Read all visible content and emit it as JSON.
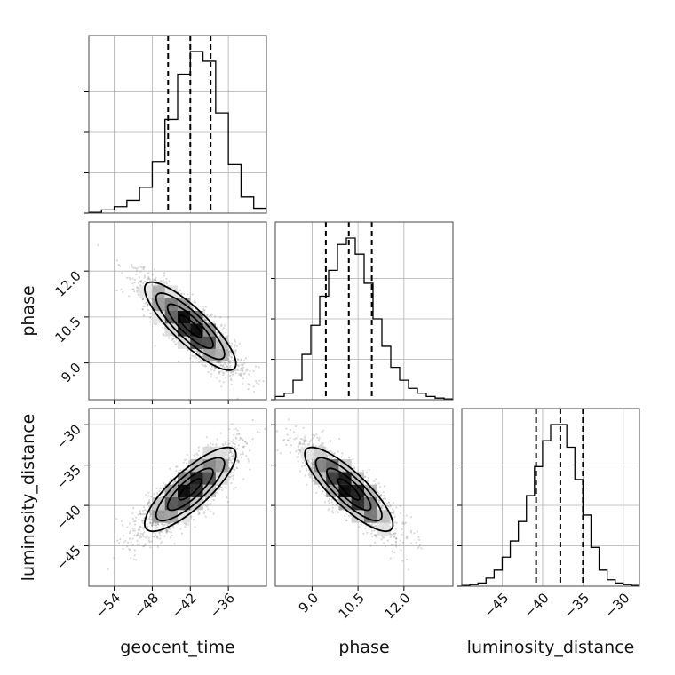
{
  "chart_data": {
    "type": "corner",
    "parameters": [
      "geocent_time",
      "phase",
      "luminosity_distance"
    ],
    "ranges": {
      "geocent_time": [
        -58,
        -30
      ],
      "phase": [
        7.8,
        13.6
      ],
      "luminosity_distance": [
        -50,
        -28
      ]
    },
    "ticks": {
      "geocent_time": [
        -54,
        -48,
        -42,
        -36
      ],
      "phase": [
        9.0,
        10.5,
        12.0
      ],
      "luminosity_distance": [
        -45,
        -40,
        -35,
        -30
      ]
    },
    "tick_labels": {
      "geocent_time": [
        "−54",
        "−48",
        "−42",
        "−36"
      ],
      "phase": [
        "9.0",
        "10.5",
        "12.0"
      ],
      "luminosity_distance": [
        "−45",
        "−40",
        "−35",
        "−30"
      ]
    },
    "histograms": {
      "geocent_time": {
        "bin_edges": [
          -58,
          -56,
          -54,
          -52,
          -50,
          -48,
          -46,
          -44,
          -42,
          -40,
          -38,
          -36,
          -34,
          -32,
          -30
        ],
        "counts": [
          0.005,
          0.02,
          0.04,
          0.08,
          0.16,
          0.32,
          0.58,
          0.86,
          1.0,
          0.94,
          0.62,
          0.3,
          0.1,
          0.03
        ],
        "quantiles": [
          -45.5,
          -42.0,
          -38.8
        ]
      },
      "phase": {
        "bin_edges": [
          7.8,
          8.09,
          8.38,
          8.67,
          8.96,
          9.25,
          9.54,
          9.83,
          10.12,
          10.41,
          10.7,
          10.99,
          11.28,
          11.57,
          11.86,
          12.15,
          12.44,
          12.73,
          13.02,
          13.31,
          13.6
        ],
        "counts": [
          0.02,
          0.04,
          0.12,
          0.28,
          0.46,
          0.64,
          0.8,
          0.96,
          1.0,
          0.9,
          0.72,
          0.5,
          0.33,
          0.2,
          0.12,
          0.07,
          0.04,
          0.02,
          0.01,
          0.005
        ],
        "quantiles": [
          9.45,
          10.2,
          10.95
        ]
      },
      "luminosity_distance": {
        "bin_edges": [
          -50,
          -49,
          -48,
          -47,
          -46,
          -45,
          -44,
          -43,
          -42,
          -41,
          -40,
          -39,
          -38,
          -37,
          -36,
          -35,
          -34,
          -33,
          -32,
          -31,
          -30,
          -29,
          -28
        ],
        "counts": [
          0.005,
          0.01,
          0.02,
          0.05,
          0.1,
          0.18,
          0.28,
          0.4,
          0.56,
          0.74,
          0.9,
          1.0,
          1.0,
          0.86,
          0.66,
          0.44,
          0.24,
          0.1,
          0.04,
          0.02,
          0.01,
          0.005
        ],
        "quantiles": [
          -40.8,
          -37.8,
          -35.0
        ]
      }
    },
    "posteriors": [
      {
        "x": "geocent_time",
        "y": "phase",
        "mean": [
          -42.0,
          10.2
        ],
        "std": [
          3.6,
          0.72
        ],
        "correlation": -0.85
      },
      {
        "x": "geocent_time",
        "y": "luminosity_distance",
        "mean": [
          -42.0,
          -38.0
        ],
        "std": [
          3.6,
          2.6
        ],
        "correlation": 0.82
      },
      {
        "x": "phase",
        "y": "luminosity_distance",
        "mean": [
          10.2,
          -38.0
        ],
        "std": [
          0.72,
          2.6
        ],
        "correlation": -0.84
      }
    ],
    "contour_levels_sigma": [
      0.5,
      1.0,
      1.5,
      2.0
    ],
    "grid": true,
    "colors": {
      "line": "#000000",
      "grid": "#b0b0b0",
      "points": "#7a7a7a"
    }
  }
}
